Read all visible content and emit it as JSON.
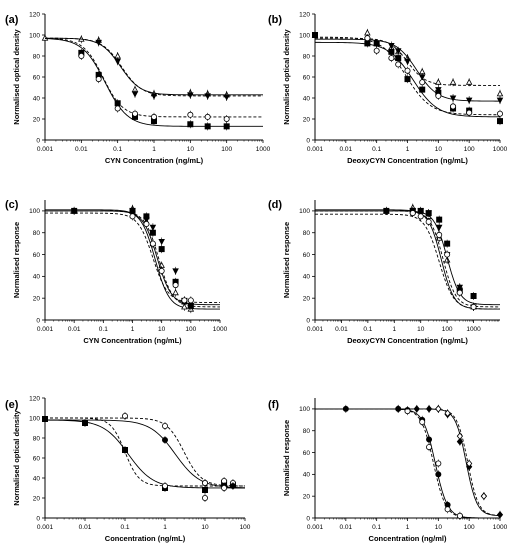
{
  "chart_data": [
    {
      "panel": "(a)",
      "type": "line",
      "xscale": "log",
      "xlim": [
        0.001,
        1000
      ],
      "ylim": [
        0,
        120
      ],
      "xticks": [
        "0.001",
        "0.01",
        "0.1",
        "1",
        "10",
        "100",
        "1000"
      ],
      "yticks": [
        "0",
        "20",
        "40",
        "60",
        "80",
        "100",
        "120"
      ],
      "xlabel": "CYN Concentration (ng/mL)",
      "ylabel": "Normalised optical density",
      "series": [
        {
          "marker": "triangle-open",
          "dashed": false,
          "curve": {
            "top": 97,
            "bottom": 43,
            "ec50": 0.12,
            "hill": 1.6
          },
          "x": [
            0.001,
            0.01,
            0.03,
            0.1,
            0.3,
            1,
            10,
            30,
            100
          ],
          "y": [
            97,
            96,
            95,
            80,
            48,
            44,
            45,
            44,
            43
          ]
        },
        {
          "marker": "triangle-down-filled",
          "dashed": true,
          "curve": {
            "top": 97,
            "bottom": 42,
            "ec50": 0.13,
            "hill": 1.6
          },
          "x": [
            0.03,
            0.1,
            0.3,
            1,
            10,
            30,
            100
          ],
          "y": [
            93,
            75,
            44,
            42,
            43,
            42,
            41
          ]
        },
        {
          "marker": "square-filled",
          "dashed": false,
          "curve": {
            "top": 97,
            "bottom": 13,
            "ec50": 0.045,
            "hill": 1.4
          },
          "x": [
            0.01,
            0.03,
            0.1,
            0.3,
            1,
            10,
            30,
            100
          ],
          "y": [
            83,
            62,
            35,
            22,
            18,
            15,
            13,
            13
          ]
        },
        {
          "marker": "circle-open",
          "dashed": true,
          "curve": {
            "top": 97,
            "bottom": 22,
            "ec50": 0.04,
            "hill": 1.6
          },
          "x": [
            0.01,
            0.03,
            0.1,
            0.3,
            1,
            10,
            30,
            100
          ],
          "y": [
            80,
            58,
            30,
            25,
            22,
            24,
            22,
            20
          ]
        }
      ]
    },
    {
      "panel": "(b)",
      "type": "line",
      "xscale": "log",
      "xlim": [
        0.001,
        1000
      ],
      "ylim": [
        0,
        120
      ],
      "xticks": [
        "0.001",
        "0.01",
        "0.1",
        "1",
        "10",
        "100",
        "1000"
      ],
      "yticks": [
        "0",
        "20",
        "40",
        "60",
        "80",
        "100",
        "120"
      ],
      "xlabel": "DeoxyCYN Concentration (ng/mL)",
      "ylabel": "Normalised optical density",
      "series": [
        {
          "marker": "triangle-open",
          "dashed": true,
          "curve": {
            "top": 97,
            "bottom": 52,
            "ec50": 1.0,
            "hill": 1.5
          },
          "x": [
            0.001,
            0.05,
            0.1,
            0.3,
            0.5,
            1,
            3,
            10,
            30,
            100,
            1000
          ],
          "y": [
            100,
            102,
            92,
            88,
            84,
            78,
            65,
            55,
            55,
            55,
            44
          ]
        },
        {
          "marker": "triangle-down-filled",
          "dashed": false,
          "curve": {
            "top": 96,
            "bottom": 37,
            "ec50": 2.0,
            "hill": 1.3
          },
          "x": [
            0.05,
            0.1,
            0.3,
            0.5,
            1,
            3,
            10,
            30,
            100,
            1000
          ],
          "y": [
            95,
            92,
            90,
            85,
            75,
            60,
            48,
            40,
            38,
            38
          ]
        },
        {
          "marker": "square-filled",
          "dashed": false,
          "curve": {
            "top": 93,
            "bottom": 22,
            "ec50": 1.5,
            "hill": 1.1
          },
          "x": [
            0.001,
            0.05,
            0.1,
            0.3,
            0.5,
            1,
            3,
            10,
            30,
            100,
            1000
          ],
          "y": [
            100,
            92,
            92,
            84,
            78,
            58,
            48,
            45,
            30,
            28,
            18
          ]
        },
        {
          "marker": "circle-open",
          "dashed": true,
          "curve": {
            "top": 98,
            "bottom": 24,
            "ec50": 0.9,
            "hill": 1.1
          },
          "x": [
            0.05,
            0.1,
            0.3,
            0.5,
            1,
            3,
            10,
            30,
            100,
            1000
          ],
          "y": [
            97,
            85,
            78,
            72,
            66,
            55,
            42,
            32,
            26,
            25
          ]
        }
      ]
    },
    {
      "panel": "(c)",
      "type": "line",
      "xscale": "log",
      "xlim": [
        0.001,
        1000
      ],
      "ylim": [
        0,
        110
      ],
      "xticks": [
        "0.001",
        "0.01",
        "0.1",
        "1",
        "10",
        "100",
        "1000"
      ],
      "yticks": [
        "0",
        "20",
        "40",
        "60",
        "80",
        "100"
      ],
      "xlabel": "CYN Concentration (ng/mL)",
      "ylabel": "Normalised response",
      "series": [
        {
          "marker": "triangle-open",
          "dashed": false,
          "curve": {
            "top": 101,
            "bottom": 10,
            "ec50": 6.0,
            "hill": 1.8
          },
          "x": [
            0.01,
            1,
            3,
            5,
            10,
            30,
            60,
            100
          ],
          "y": [
            100,
            102,
            90,
            70,
            50,
            25,
            12,
            10
          ]
        },
        {
          "marker": "triangle-down-filled",
          "dashed": true,
          "curve": {
            "top": 100,
            "bottom": 12,
            "ec50": 8.0,
            "hill": 1.8
          },
          "x": [
            1,
            3,
            5,
            10,
            30,
            60,
            100
          ],
          "y": [
            100,
            92,
            85,
            72,
            45,
            18,
            13
          ]
        },
        {
          "marker": "square-filled",
          "dashed": false,
          "curve": {
            "top": 100,
            "bottom": 14,
            "ec50": 7.0,
            "hill": 1.8
          },
          "x": [
            0.01,
            1,
            3,
            5,
            10,
            30,
            60,
            100
          ],
          "y": [
            100,
            100,
            95,
            80,
            65,
            35,
            17,
            13
          ]
        },
        {
          "marker": "circle-open",
          "dashed": true,
          "curve": {
            "top": 98,
            "bottom": 16,
            "ec50": 5.0,
            "hill": 1.7
          },
          "x": [
            1,
            3,
            5,
            10,
            30,
            60,
            100
          ],
          "y": [
            95,
            88,
            70,
            45,
            32,
            18,
            18
          ]
        }
      ]
    },
    {
      "panel": "(d)",
      "type": "line",
      "xscale": "log",
      "xlim": [
        0.001,
        10000
      ],
      "ylim": [
        0,
        110
      ],
      "xticks": [
        "0.001",
        "0.01",
        "0.1",
        "1",
        "10",
        "100",
        "1000"
      ],
      "yticks": [
        "0",
        "20",
        "40",
        "60",
        "80",
        "100"
      ],
      "xlabel": "DeoxyCYN Concentration (ng/mL)",
      "ylabel": "Normalised response",
      "series": [
        {
          "marker": "triangle-open",
          "dashed": false,
          "curve": {
            "top": 101,
            "bottom": 10,
            "ec50": 60,
            "hill": 1.8
          },
          "x": [
            0.5,
            5,
            10,
            20,
            50,
            100,
            300,
            1000
          ],
          "y": [
            100,
            103,
            100,
            95,
            75,
            55,
            30,
            12
          ]
        },
        {
          "marker": "triangle-down-filled",
          "dashed": true,
          "curve": {
            "top": 100,
            "bottom": 12,
            "ec50": 70,
            "hill": 1.8
          },
          "x": [
            5,
            10,
            20,
            50,
            100,
            300,
            1000
          ],
          "y": [
            100,
            100,
            98,
            85,
            60,
            30,
            12
          ]
        },
        {
          "marker": "square-filled",
          "dashed": false,
          "curve": {
            "top": 100,
            "bottom": 14,
            "ec50": 100,
            "hill": 1.8
          },
          "x": [
            0.5,
            5,
            10,
            20,
            50,
            100,
            300,
            1000
          ],
          "y": [
            100,
            100,
            100,
            98,
            92,
            70,
            27,
            22
          ]
        },
        {
          "marker": "circle-open",
          "dashed": true,
          "curve": {
            "top": 97,
            "bottom": 10,
            "ec50": 50,
            "hill": 1.6
          },
          "x": [
            5,
            10,
            20,
            50,
            100,
            300,
            1000
          ],
          "y": [
            98,
            95,
            90,
            78,
            60,
            25,
            12
          ]
        }
      ]
    },
    {
      "panel": "(e)",
      "type": "line",
      "xscale": "log",
      "xlim": [
        0.001,
        100
      ],
      "ylim": [
        0,
        120
      ],
      "xticks": [
        "0.001",
        "0.01",
        "0.1",
        "1",
        "10",
        "100"
      ],
      "yticks": [
        "0",
        "20",
        "40",
        "60",
        "80",
        "100",
        "120"
      ],
      "xlabel": "Concentration (ng/mL)",
      "ylabel": "Normalised optical density",
      "series": [
        {
          "marker": "square-filled",
          "dashed": false,
          "curve": {
            "top": 98,
            "bottom": 30,
            "ec50": 0.12,
            "hill": 1.4
          },
          "x": [
            0.001,
            0.01,
            0.1,
            1,
            10,
            30,
            50
          ],
          "y": [
            99,
            95,
            68,
            30,
            28,
            35,
            33
          ]
        },
        {
          "marker": "circle-open",
          "dashed": true,
          "curve": {
            "top": 100,
            "bottom": 32,
            "ec50": 0.1,
            "hill": 2.5
          },
          "x": [
            0.1,
            1,
            10,
            30,
            50
          ],
          "y": [
            102,
            32,
            20,
            37,
            35
          ]
        },
        {
          "marker": "circle-filled",
          "dashed": false,
          "curve": {
            "top": 98,
            "bottom": 30,
            "ec50": 1.8,
            "hill": 1.4
          },
          "x": [
            1,
            10,
            30,
            50
          ],
          "y": [
            78,
            35,
            32,
            32
          ]
        },
        {
          "marker": "circle-open",
          "dashed": true,
          "curve": {
            "top": 100,
            "bottom": 32,
            "ec50": 3.0,
            "hill": 2.0
          },
          "x": [
            1,
            10,
            30
          ],
          "y": [
            92,
            35,
            30
          ]
        }
      ]
    },
    {
      "panel": "(f)",
      "type": "line",
      "xscale": "log",
      "xlim": [
        0.001,
        1000
      ],
      "ylim": [
        0,
        110
      ],
      "xticks": [
        "0.001",
        "0.01",
        "0.1",
        "1",
        "10",
        "100",
        "1000"
      ],
      "yticks": [
        "0",
        "20",
        "40",
        "60",
        "80",
        "100"
      ],
      "xlabel": "Concentration (ng/ml)",
      "ylabel": "Normalised response",
      "series": [
        {
          "marker": "circle-filled",
          "dashed": false,
          "curve": {
            "top": 100,
            "bottom": 0,
            "ec50": 8.0,
            "hill": 2.2
          },
          "x": [
            0.01,
            0.5,
            1,
            3,
            5,
            10,
            20,
            50
          ],
          "y": [
            100,
            100,
            99,
            90,
            72,
            40,
            12,
            2
          ]
        },
        {
          "marker": "circle-open",
          "dashed": true,
          "curve": {
            "top": 100,
            "bottom": 0,
            "ec50": 7.0,
            "hill": 2.2
          },
          "x": [
            1,
            3,
            5,
            10,
            20,
            50
          ],
          "y": [
            98,
            88,
            65,
            50,
            8,
            2
          ]
        },
        {
          "marker": "diamond-filled",
          "dashed": false,
          "curve": {
            "top": 100,
            "bottom": 2,
            "ec50": 80,
            "hill": 2.5
          },
          "x": [
            0.5,
            2,
            5,
            10,
            20,
            50,
            100,
            300,
            1000
          ],
          "y": [
            100,
            100,
            100,
            100,
            95,
            70,
            47,
            20,
            3
          ]
        },
        {
          "marker": "diamond-open",
          "dashed": true,
          "curve": {
            "top": 100,
            "bottom": 2,
            "ec50": 90,
            "hill": 2.5
          },
          "x": [
            10,
            20,
            50,
            100,
            300
          ],
          "y": [
            100,
            96,
            75,
            50,
            20
          ]
        }
      ]
    }
  ]
}
